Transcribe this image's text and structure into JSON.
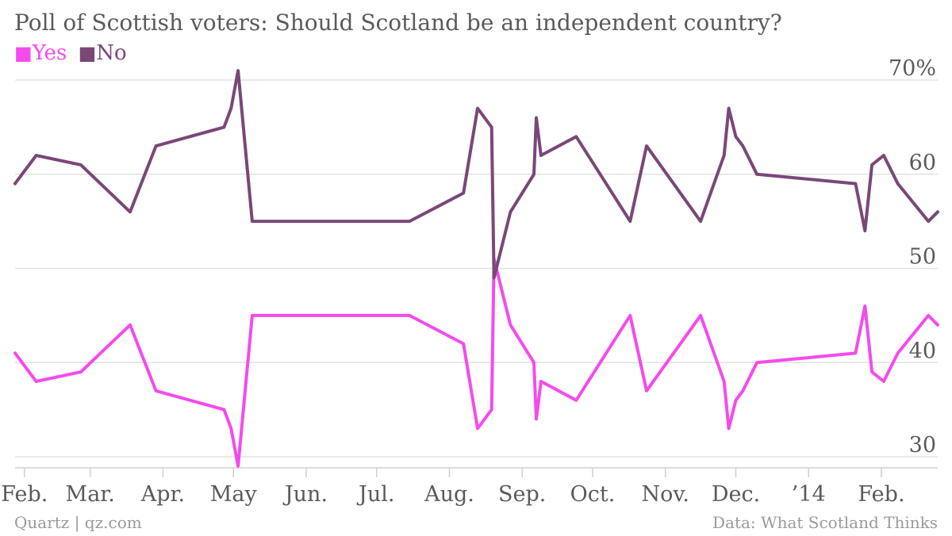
{
  "title": "Poll of Scottish voters: Should Scotland be an independent country?",
  "legend": [
    {
      "key": "yes",
      "symbol": "■",
      "label": "Yes",
      "color": "#f44bec"
    },
    {
      "key": "no",
      "symbol": "■",
      "label": "No",
      "color": "#7a4779"
    }
  ],
  "footer": {
    "source_left": "Quartz | qz.com",
    "source_right": "Data: What Scotland Thinks"
  },
  "chart_data": {
    "type": "line",
    "title": "Poll of Scottish voters: Should Scotland be an independent country?",
    "xlabel": "",
    "ylabel": "",
    "ylim": [
      30,
      70
    ],
    "y_ticks": [
      {
        "value": 70,
        "label": "70%"
      },
      {
        "value": 60,
        "label": "60"
      },
      {
        "value": 50,
        "label": "50"
      },
      {
        "value": 40,
        "label": "40"
      },
      {
        "value": 30,
        "label": "30"
      }
    ],
    "x_range": [
      "2013-01-28",
      "2014-02-25"
    ],
    "x_ticks": [
      {
        "date": "2013-02-01",
        "label": "Feb."
      },
      {
        "date": "2013-03-01",
        "label": "Mar."
      },
      {
        "date": "2013-04-01",
        "label": "Apr."
      },
      {
        "date": "2013-05-01",
        "label": "May"
      },
      {
        "date": "2013-06-01",
        "label": "Jun."
      },
      {
        "date": "2013-07-01",
        "label": "Jul."
      },
      {
        "date": "2013-08-01",
        "label": "Aug."
      },
      {
        "date": "2013-09-01",
        "label": "Sep."
      },
      {
        "date": "2013-10-01",
        "label": "Oct."
      },
      {
        "date": "2013-11-01",
        "label": "Nov."
      },
      {
        "date": "2013-12-01",
        "label": "Dec."
      },
      {
        "date": "2014-01-01",
        "label": "’14"
      },
      {
        "date": "2014-02-01",
        "label": "Feb."
      }
    ],
    "grid": true,
    "series": [
      {
        "name": "Yes",
        "color": "#f44bec",
        "points": [
          [
            "2013-01-28",
            41
          ],
          [
            "2013-02-06",
            38
          ],
          [
            "2013-02-25",
            39
          ],
          [
            "2013-03-18",
            44
          ],
          [
            "2013-03-29",
            37
          ],
          [
            "2013-04-27",
            35
          ],
          [
            "2013-04-30",
            33
          ],
          [
            "2013-05-03",
            29
          ],
          [
            "2013-05-09",
            45
          ],
          [
            "2013-07-15",
            45
          ],
          [
            "2013-08-07",
            42
          ],
          [
            "2013-08-13",
            33
          ],
          [
            "2013-08-19",
            35
          ],
          [
            "2013-08-20",
            51
          ],
          [
            "2013-08-27",
            44
          ],
          [
            "2013-09-06",
            40
          ],
          [
            "2013-09-07",
            34
          ],
          [
            "2013-09-09",
            38
          ],
          [
            "2013-09-24",
            36
          ],
          [
            "2013-10-17",
            45
          ],
          [
            "2013-10-24",
            37
          ],
          [
            "2013-11-16",
            45
          ],
          [
            "2013-11-26",
            38
          ],
          [
            "2013-11-28",
            33
          ],
          [
            "2013-12-01",
            36
          ],
          [
            "2013-12-04",
            37
          ],
          [
            "2013-12-10",
            40
          ],
          [
            "2014-01-21",
            41
          ],
          [
            "2014-01-25",
            46
          ],
          [
            "2014-01-28",
            39
          ],
          [
            "2014-02-02",
            38
          ],
          [
            "2014-02-08",
            41
          ],
          [
            "2014-02-21",
            45
          ],
          [
            "2014-02-25",
            44
          ]
        ]
      },
      {
        "name": "No",
        "color": "#7a4779",
        "points": [
          [
            "2013-01-28",
            59
          ],
          [
            "2013-02-06",
            62
          ],
          [
            "2013-02-25",
            61
          ],
          [
            "2013-03-18",
            56
          ],
          [
            "2013-03-29",
            63
          ],
          [
            "2013-04-27",
            65
          ],
          [
            "2013-04-30",
            67
          ],
          [
            "2013-05-03",
            71
          ],
          [
            "2013-05-09",
            55
          ],
          [
            "2013-07-15",
            55
          ],
          [
            "2013-08-07",
            58
          ],
          [
            "2013-08-13",
            67
          ],
          [
            "2013-08-19",
            65
          ],
          [
            "2013-08-20",
            49
          ],
          [
            "2013-08-27",
            56
          ],
          [
            "2013-09-06",
            60
          ],
          [
            "2013-09-07",
            66
          ],
          [
            "2013-09-09",
            62
          ],
          [
            "2013-09-24",
            64
          ],
          [
            "2013-10-17",
            55
          ],
          [
            "2013-10-24",
            63
          ],
          [
            "2013-11-16",
            55
          ],
          [
            "2013-11-26",
            62
          ],
          [
            "2013-11-28",
            67
          ],
          [
            "2013-12-01",
            64
          ],
          [
            "2013-12-04",
            63
          ],
          [
            "2013-12-10",
            60
          ],
          [
            "2014-01-21",
            59
          ],
          [
            "2014-01-25",
            54
          ],
          [
            "2014-01-28",
            61
          ],
          [
            "2014-02-02",
            62
          ],
          [
            "2014-02-08",
            59
          ],
          [
            "2014-02-21",
            55
          ],
          [
            "2014-02-25",
            56
          ]
        ]
      }
    ]
  }
}
